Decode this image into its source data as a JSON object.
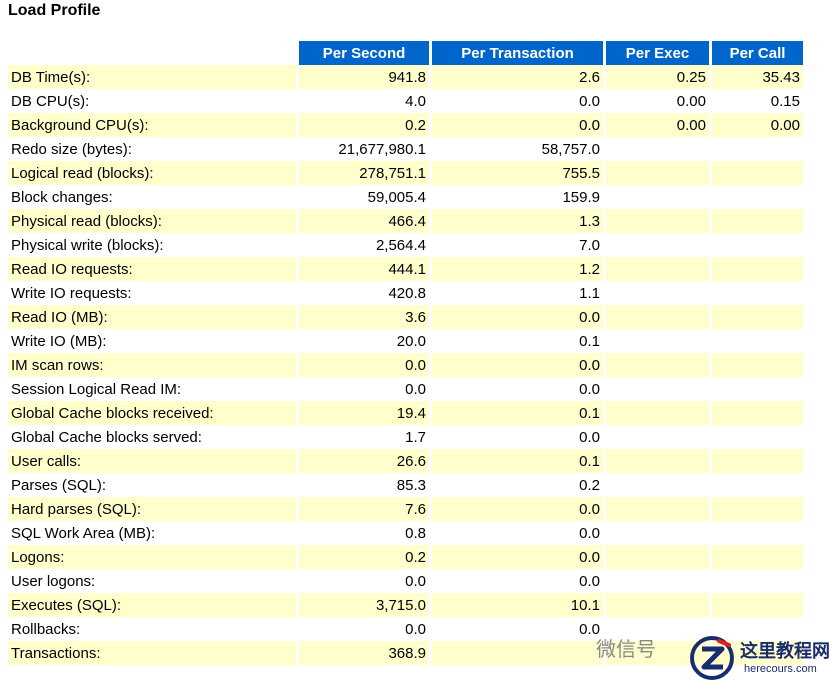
{
  "title": "Load Profile",
  "headers": [
    "",
    "Per Second",
    "Per Transaction",
    "Per Exec",
    "Per Call"
  ],
  "rows": [
    [
      "DB Time(s):",
      "941.8",
      "2.6",
      "0.25",
      "35.43"
    ],
    [
      "DB CPU(s):",
      "4.0",
      "0.0",
      "0.00",
      "0.15"
    ],
    [
      "Background CPU(s):",
      "0.2",
      "0.0",
      "0.00",
      "0.00"
    ],
    [
      "Redo size (bytes):",
      "21,677,980.1",
      "58,757.0",
      "",
      ""
    ],
    [
      "Logical read (blocks):",
      "278,751.1",
      "755.5",
      "",
      ""
    ],
    [
      "Block changes:",
      "59,005.4",
      "159.9",
      "",
      ""
    ],
    [
      "Physical read (blocks):",
      "466.4",
      "1.3",
      "",
      ""
    ],
    [
      "Physical write (blocks):",
      "2,564.4",
      "7.0",
      "",
      ""
    ],
    [
      "Read IO requests:",
      "444.1",
      "1.2",
      "",
      ""
    ],
    [
      "Write IO requests:",
      "420.8",
      "1.1",
      "",
      ""
    ],
    [
      "Read IO (MB):",
      "3.6",
      "0.0",
      "",
      ""
    ],
    [
      "Write IO (MB):",
      "20.0",
      "0.1",
      "",
      ""
    ],
    [
      "IM scan rows:",
      "0.0",
      "0.0",
      "",
      ""
    ],
    [
      "Session Logical Read IM:",
      "0.0",
      "0.0",
      "",
      ""
    ],
    [
      "Global Cache blocks received:",
      "19.4",
      "0.1",
      "",
      ""
    ],
    [
      "Global Cache blocks served:",
      "1.7",
      "0.0",
      "",
      ""
    ],
    [
      "User calls:",
      "26.6",
      "0.1",
      "",
      ""
    ],
    [
      "Parses (SQL):",
      "85.3",
      "0.2",
      "",
      ""
    ],
    [
      "Hard parses (SQL):",
      "7.6",
      "0.0",
      "",
      ""
    ],
    [
      "SQL Work Area (MB):",
      "0.8",
      "0.0",
      "",
      ""
    ],
    [
      "Logons:",
      "0.2",
      "0.0",
      "",
      ""
    ],
    [
      "User logons:",
      "0.0",
      "0.0",
      "",
      ""
    ],
    [
      "Executes (SQL):",
      "3,715.0",
      "10.1",
      "",
      ""
    ],
    [
      "Rollbacks:",
      "0.0",
      "0.0",
      "",
      ""
    ],
    [
      "Transactions:",
      "368.9",
      "",
      "",
      ""
    ]
  ],
  "watermark": {
    "wechat_text": "微信号",
    "brand": "这里教程网",
    "url": "herecours.com"
  },
  "colors": {
    "header_bg": "#0066cc",
    "header_text": "#ffffff",
    "row_highlight": "#ffffcc"
  }
}
